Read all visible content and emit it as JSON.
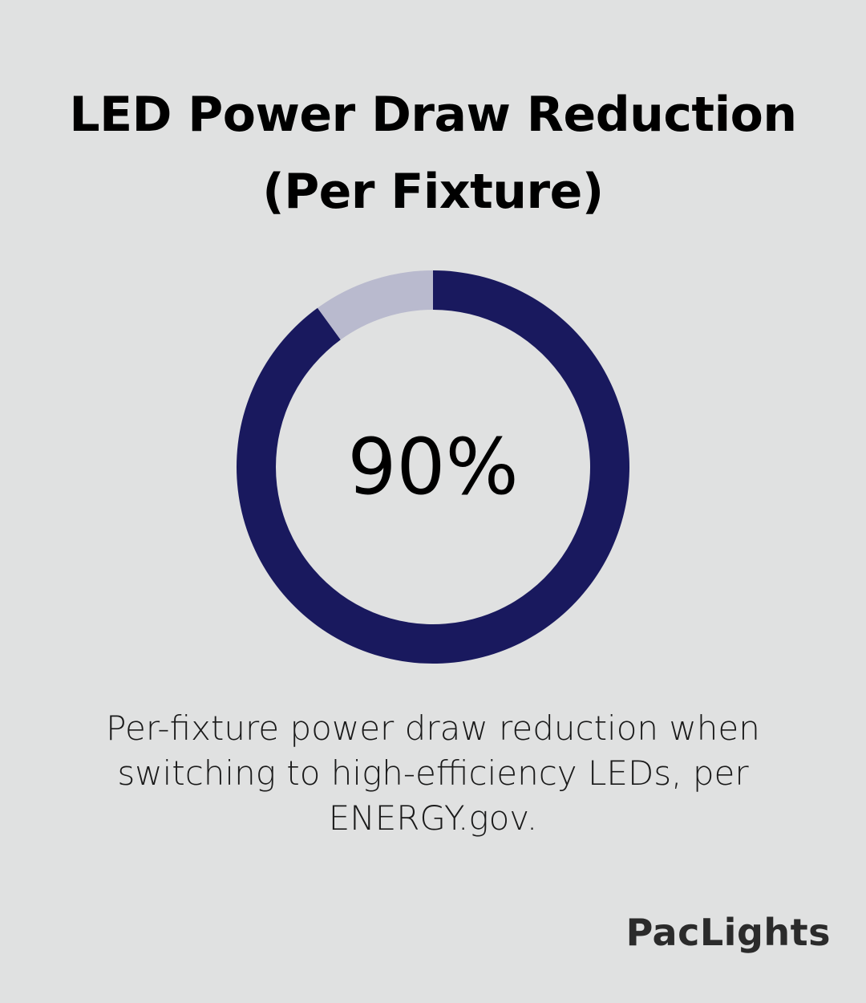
{
  "title_line1": "LED Power Draw Reduction",
  "title_line2": "(Per Fixture)",
  "chart_data": {
    "type": "pie",
    "style": "donut",
    "slices": [
      {
        "label": "",
        "value": 90,
        "color": "#19195e"
      },
      {
        "label": "",
        "value": 10,
        "color": "#b9bace"
      }
    ],
    "center_label": "90%"
  },
  "caption": "Per-fixture power draw reduction when switching to high-efficiency LEDs, per ENERGY.gov.",
  "logo": "PacLights",
  "colors": {
    "background": "#e0e1e1",
    "primary": "#19195e",
    "remainder": "#b9bace"
  }
}
